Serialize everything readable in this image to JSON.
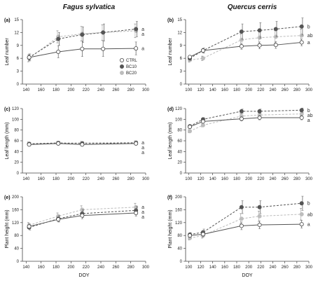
{
  "columns": [
    "Fagus sylvatica",
    "Quercus cerris"
  ],
  "colors": {
    "CTRL": "#ffffff",
    "BC10": "#555555",
    "BC20": "#bdbdbd",
    "axis": "#444444"
  },
  "legend": [
    "CTRL",
    "BC10",
    "BC20"
  ],
  "chart_data": [
    {
      "panel": "(a)",
      "type": "line",
      "ylabel": "Leaf number",
      "xlabel": "",
      "xlim": [
        135,
        300
      ],
      "xticks": [
        140,
        160,
        180,
        200,
        220,
        240,
        260,
        280,
        300
      ],
      "ylim": [
        0,
        15
      ],
      "yticks": [
        0,
        3,
        6,
        9,
        12,
        15
      ],
      "x": [
        144,
        183,
        215,
        243,
        287
      ],
      "series": [
        {
          "name": "CTRL",
          "values": [
            6.2,
            7.5,
            8.2,
            8.2,
            8.3
          ],
          "err": [
            0.8,
            1.4,
            1.8,
            1.8,
            1.5
          ],
          "sig": "a"
        },
        {
          "name": "BC10",
          "values": [
            6.2,
            10.5,
            11.5,
            12.0,
            12.8
          ],
          "err": [
            0.8,
            1.5,
            1.8,
            2.0,
            1.8
          ],
          "sig": "a"
        },
        {
          "name": "BC20",
          "values": [
            6.0,
            11.0,
            11.7,
            12.0,
            12.4
          ],
          "err": [
            0.8,
            1.4,
            1.7,
            1.8,
            1.6
          ],
          "sig": "a"
        }
      ],
      "sig_label_order": [
        "BC10",
        "BC20",
        "CTRL"
      ]
    },
    {
      "panel": "(b)",
      "type": "line",
      "ylabel": "Leaf number",
      "xlabel": "",
      "xlim": [
        95,
        300
      ],
      "xticks": [
        100,
        120,
        140,
        160,
        180,
        200,
        220,
        240,
        260,
        280,
        300
      ],
      "ylim": [
        0,
        15
      ],
      "yticks": [
        0,
        3,
        6,
        9,
        12,
        15
      ],
      "x": [
        102,
        124,
        188,
        218,
        245,
        288
      ],
      "series": [
        {
          "name": "CTRL",
          "values": [
            6.3,
            7.8,
            8.8,
            9.0,
            9.1,
            9.7
          ],
          "err": [
            0.4,
            0.5,
            0.7,
            0.8,
            0.8,
            0.8
          ],
          "sig": "a"
        },
        {
          "name": "BC10",
          "values": [
            6.0,
            7.8,
            12.2,
            12.5,
            12.8,
            13.4
          ],
          "err": [
            0.5,
            0.6,
            1.8,
            1.8,
            1.8,
            2.0
          ],
          "sig": "b"
        },
        {
          "name": "BC20",
          "values": [
            5.6,
            6.0,
            10.3,
            10.8,
            11.0,
            11.3
          ],
          "err": [
            0.5,
            0.5,
            1.4,
            1.5,
            1.5,
            1.5
          ],
          "sig": "ab"
        }
      ],
      "sig_label_order": [
        "BC10",
        "BC20",
        "CTRL"
      ]
    },
    {
      "panel": "(c)",
      "type": "line",
      "ylabel": "Leaf length (mm)",
      "xlabel": "",
      "xlim": [
        135,
        300
      ],
      "xticks": [
        140,
        160,
        180,
        200,
        220,
        240,
        260,
        280,
        300
      ],
      "ylim": [
        0,
        120
      ],
      "yticks": [
        0,
        20,
        40,
        60,
        80,
        100,
        120
      ],
      "x": [
        144,
        183,
        215,
        287
      ],
      "series": [
        {
          "name": "CTRL",
          "values": [
            53,
            55,
            53,
            55
          ],
          "err": [
            3,
            3,
            3,
            3
          ],
          "sig": "a"
        },
        {
          "name": "BC10",
          "values": [
            54,
            56,
            55,
            56
          ],
          "err": [
            3,
            3,
            3,
            3
          ],
          "sig": "a"
        },
        {
          "name": "BC20",
          "values": [
            55,
            56,
            56,
            57
          ],
          "err": [
            3,
            3,
            3,
            3
          ],
          "sig": "a"
        }
      ],
      "sig_label_order": [
        "BC20",
        "BC10",
        "CTRL"
      ]
    },
    {
      "panel": "(d)",
      "type": "line",
      "ylabel": "Leaf length (mm)",
      "xlabel": "",
      "xlim": [
        95,
        300
      ],
      "xticks": [
        100,
        120,
        140,
        160,
        180,
        200,
        220,
        240,
        260,
        280,
        300
      ],
      "ylim": [
        0,
        120
      ],
      "yticks": [
        0,
        20,
        40,
        60,
        80,
        100,
        120
      ],
      "x": [
        102,
        124,
        188,
        218,
        288
      ],
      "series": [
        {
          "name": "CTRL",
          "values": [
            86,
            96,
            101,
            103,
            103
          ],
          "err": [
            3,
            3,
            4,
            4,
            4
          ],
          "sig": "a"
        },
        {
          "name": "BC10",
          "values": [
            87,
            100,
            115,
            115,
            117
          ],
          "err": [
            3,
            3,
            4,
            4,
            4
          ],
          "sig": "b"
        },
        {
          "name": "BC20",
          "values": [
            78,
            89,
            106,
            108,
            110
          ],
          "err": [
            3,
            3,
            4,
            4,
            4
          ],
          "sig": "ab"
        }
      ],
      "sig_label_order": [
        "BC10",
        "BC20",
        "CTRL"
      ]
    },
    {
      "panel": "(e)",
      "type": "line",
      "ylabel": "Plant height (mm)",
      "xlabel": "DOY",
      "xlim": [
        135,
        300
      ],
      "xticks": [
        140,
        160,
        180,
        200,
        220,
        240,
        260,
        280,
        300
      ],
      "ylim": [
        0,
        200
      ],
      "yticks": [
        0,
        40,
        80,
        120,
        160,
        200
      ],
      "x": [
        144,
        183,
        215,
        287
      ],
      "series": [
        {
          "name": "CTRL",
          "values": [
            108,
            130,
            142,
            150
          ],
          "err": [
            8,
            8,
            10,
            10
          ],
          "sig": "a"
        },
        {
          "name": "BC10",
          "values": [
            105,
            132,
            148,
            158
          ],
          "err": [
            8,
            10,
            12,
            12
          ],
          "sig": "a"
        },
        {
          "name": "BC20",
          "values": [
            112,
            140,
            160,
            168
          ],
          "err": [
            8,
            10,
            12,
            12
          ],
          "sig": "a"
        }
      ],
      "sig_label_order": [
        "BC20",
        "BC10",
        "CTRL"
      ]
    },
    {
      "panel": "(f)",
      "type": "line",
      "ylabel": "Plant height (mm)",
      "xlabel": "DOY",
      "xlim": [
        95,
        300
      ],
      "xticks": [
        100,
        120,
        140,
        160,
        180,
        200,
        220,
        240,
        260,
        280,
        300
      ],
      "ylim": [
        0,
        200
      ],
      "yticks": [
        0,
        40,
        80,
        120,
        160,
        200
      ],
      "x": [
        102,
        124,
        188,
        218,
        288
      ],
      "series": [
        {
          "name": "CTRL",
          "values": [
            80,
            84,
            110,
            113,
            115
          ],
          "err": [
            6,
            8,
            12,
            12,
            12
          ],
          "sig": "a"
        },
        {
          "name": "BC10",
          "values": [
            83,
            90,
            168,
            168,
            180
          ],
          "err": [
            6,
            10,
            20,
            20,
            22
          ],
          "sig": "b"
        },
        {
          "name": "BC20",
          "values": [
            72,
            80,
            132,
            140,
            146
          ],
          "err": [
            6,
            8,
            16,
            16,
            18
          ],
          "sig": "ab"
        }
      ],
      "sig_label_order": [
        "BC10",
        "BC20",
        "CTRL"
      ]
    }
  ]
}
